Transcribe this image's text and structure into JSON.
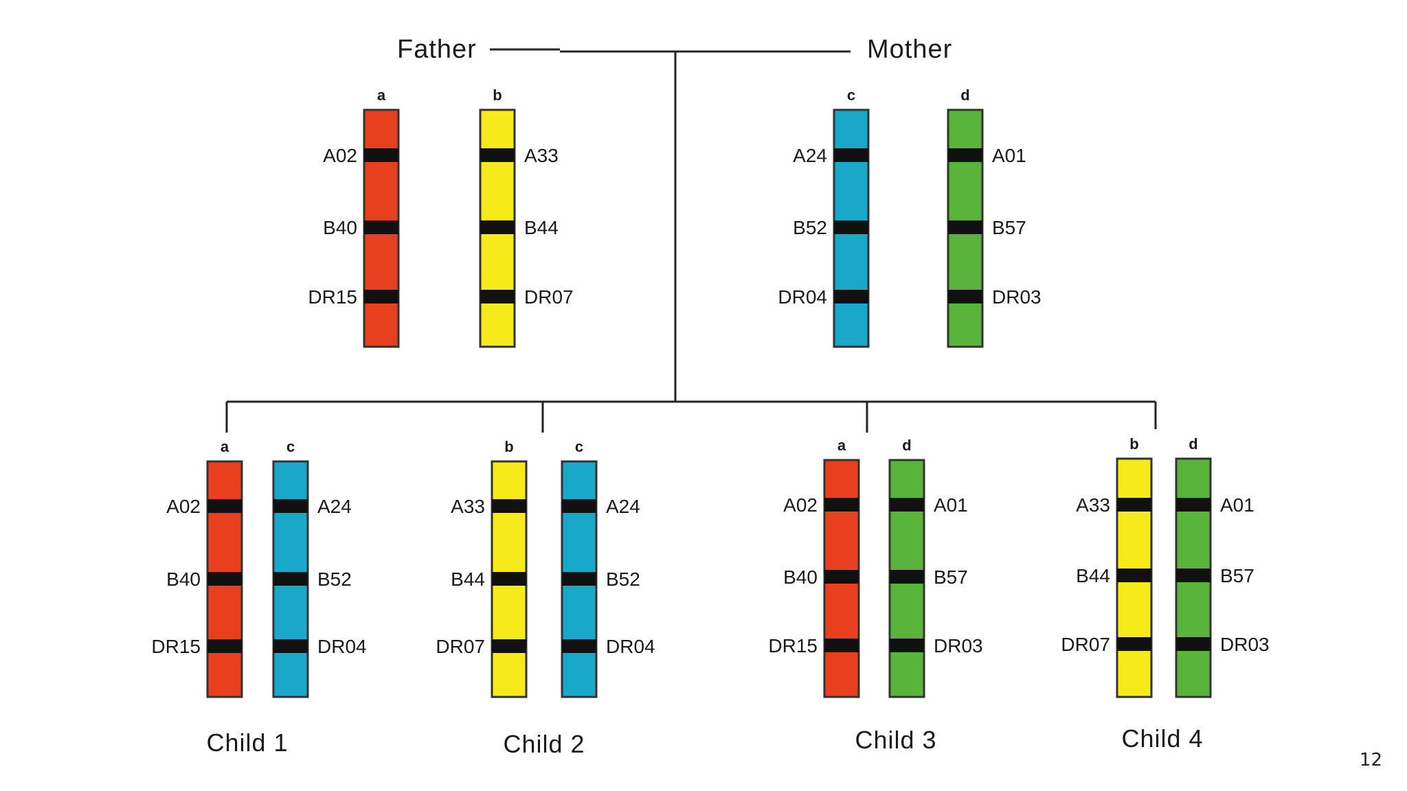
{
  "parents": {
    "father_label": "Father",
    "mother_label": "Mother"
  },
  "colors": {
    "a": "#e8401f",
    "b": "#f5ea1a",
    "c": "#1aa8c8",
    "d": "#5ab33a",
    "band": "#111111"
  },
  "father": {
    "chromosomes": [
      {
        "letter": "a",
        "genes": [
          "A02",
          "B40",
          "DR15"
        ]
      },
      {
        "letter": "b",
        "genes": [
          "A33",
          "B44",
          "DR07"
        ]
      }
    ]
  },
  "mother": {
    "chromosomes": [
      {
        "letter": "c",
        "genes": [
          "A24",
          "B52",
          "DR04"
        ]
      },
      {
        "letter": "d",
        "genes": [
          "A01",
          "B57",
          "DR03"
        ]
      }
    ]
  },
  "children": [
    {
      "label": "Child 1",
      "chromosomes": [
        {
          "letter": "a",
          "genes": [
            "A02",
            "B40",
            "DR15"
          ]
        },
        {
          "letter": "c",
          "genes": [
            "A24",
            "B52",
            "DR04"
          ]
        }
      ]
    },
    {
      "label": "Child 2",
      "chromosomes": [
        {
          "letter": "b",
          "genes": [
            "A33",
            "B44",
            "DR07"
          ]
        },
        {
          "letter": "c",
          "genes": [
            "A24",
            "B52",
            "DR04"
          ]
        }
      ]
    },
    {
      "label": "Child 3",
      "chromosomes": [
        {
          "letter": "a",
          "genes": [
            "A02",
            "B40",
            "DR15"
          ]
        },
        {
          "letter": "d",
          "genes": [
            "A01",
            "B57",
            "DR03"
          ]
        }
      ]
    },
    {
      "label": "Child 4",
      "chromosomes": [
        {
          "letter": "b",
          "genes": [
            "A33",
            "B44",
            "DR07"
          ]
        },
        {
          "letter": "d",
          "genes": [
            "A01",
            "B57",
            "DR03"
          ]
        }
      ]
    }
  ],
  "slide_number": "12"
}
